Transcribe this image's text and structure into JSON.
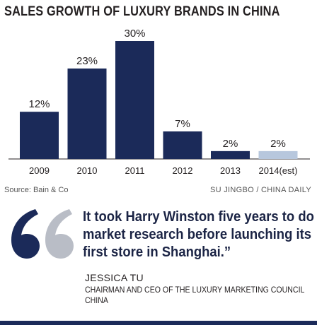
{
  "title": "SALES GROWTH OF LUXURY BRANDS IN CHINA",
  "source": "Source: Bain & Co",
  "credit": "SU JINGBO / CHINA DAILY",
  "colors": {
    "bar": "#1b2a59",
    "bar_estimate": "#b7c7dd",
    "quote_mark": "#1b2a59",
    "quote_mark_light": "#b9bdc6",
    "quote_text": "#1b2445"
  },
  "quote": {
    "text": "It took Harry Winston five years to do market research before launching its first store in Shanghai.”",
    "speaker": "JESSICA TU",
    "speaker_title": "CHAIRMAN AND CEO OF THE LUXURY MARKETING COUNCIL CHINA"
  },
  "chart_data": {
    "type": "bar",
    "title": "SALES GROWTH OF LUXURY BRANDS IN CHINA",
    "xlabel": "",
    "ylabel": "",
    "categories": [
      "2009",
      "2010",
      "2011",
      "2012",
      "2013",
      "2014(est)"
    ],
    "values": [
      12,
      23,
      30,
      7,
      2,
      2
    ],
    "value_labels": [
      "12%",
      "23%",
      "30%",
      "7%",
      "2%",
      "2%"
    ],
    "estimate_flags": [
      false,
      false,
      false,
      false,
      false,
      true
    ],
    "ylim": [
      0,
      30
    ],
    "grid": false,
    "legend": "none"
  }
}
